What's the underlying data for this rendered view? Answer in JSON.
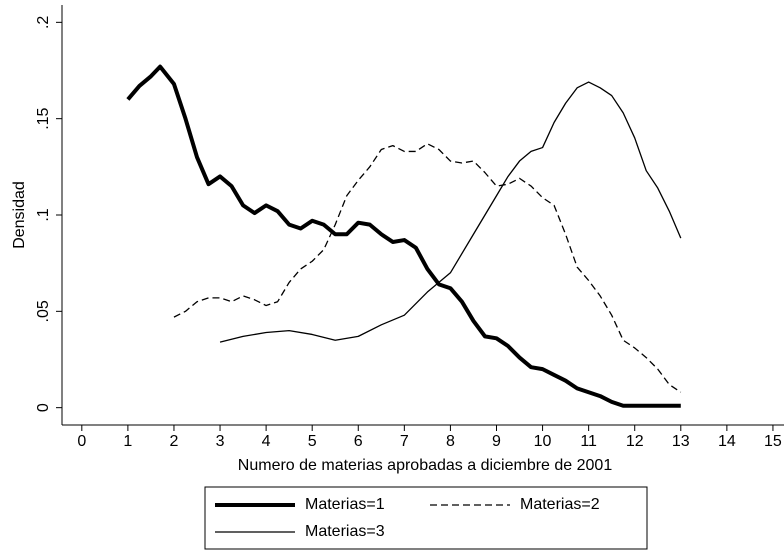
{
  "chart_data": {
    "type": "line",
    "x_label": "Numero de materias aprobadas a diciembre de 2001",
    "y_label": "Densidad",
    "xlim": [
      -0.43,
      15.24
    ],
    "ylim": [
      -0.009,
      0.209
    ],
    "xticks": [
      0,
      1,
      2,
      3,
      4,
      5,
      6,
      7,
      8,
      9,
      10,
      11,
      12,
      13,
      14,
      15
    ],
    "yticks": [
      0,
      {
        "value": 0.05,
        "label": ".05"
      },
      {
        "value": 0.1,
        "label": ".1"
      },
      {
        "value": 0.15,
        "label": ".15"
      },
      {
        "value": 0.2,
        "label": ".2"
      }
    ],
    "legend": "bottom",
    "series": [
      {
        "name": "Materias=1",
        "color": "#000000",
        "style": "thick",
        "x": [
          1,
          1.25,
          1.5,
          1.7,
          2,
          2.25,
          2.5,
          2.75,
          3,
          3.25,
          3.5,
          3.75,
          4,
          4.25,
          4.5,
          4.75,
          5,
          5.25,
          5.5,
          5.75,
          6,
          6.25,
          6.5,
          6.75,
          7,
          7.25,
          7.5,
          7.75,
          8,
          8.25,
          8.5,
          8.75,
          9,
          9.25,
          9.5,
          9.75,
          10,
          10.25,
          10.5,
          10.75,
          11,
          11.25,
          11.5,
          11.75,
          12,
          12.5,
          13
        ],
        "values": [
          0.16,
          0.167,
          0.172,
          0.177,
          0.168,
          0.15,
          0.13,
          0.116,
          0.12,
          0.115,
          0.105,
          0.101,
          0.105,
          0.102,
          0.095,
          0.093,
          0.097,
          0.095,
          0.09,
          0.09,
          0.096,
          0.095,
          0.09,
          0.086,
          0.087,
          0.083,
          0.072,
          0.064,
          0.062,
          0.055,
          0.045,
          0.037,
          0.036,
          0.032,
          0.026,
          0.021,
          0.02,
          0.017,
          0.014,
          0.01,
          0.008,
          0.006,
          0.003,
          0.001,
          0.001,
          0.001,
          0.001
        ]
      },
      {
        "name": "Materias=2",
        "color": "#000000",
        "style": "dashed",
        "x": [
          2,
          2.25,
          2.5,
          2.75,
          3,
          3.25,
          3.5,
          3.75,
          4,
          4.25,
          4.5,
          4.75,
          5,
          5.25,
          5.5,
          5.75,
          6,
          6.25,
          6.5,
          6.75,
          7,
          7.25,
          7.5,
          7.75,
          8,
          8.25,
          8.5,
          8.75,
          9,
          9.25,
          9.5,
          9.75,
          10,
          10.25,
          10.5,
          10.75,
          11,
          11.25,
          11.5,
          11.75,
          12,
          12.25,
          12.5,
          12.75,
          13
        ],
        "values": [
          0.047,
          0.05,
          0.055,
          0.057,
          0.057,
          0.055,
          0.058,
          0.056,
          0.053,
          0.055,
          0.065,
          0.072,
          0.076,
          0.082,
          0.095,
          0.11,
          0.118,
          0.125,
          0.134,
          0.136,
          0.133,
          0.133,
          0.137,
          0.134,
          0.128,
          0.127,
          0.128,
          0.122,
          0.115,
          0.116,
          0.119,
          0.115,
          0.109,
          0.105,
          0.09,
          0.073,
          0.066,
          0.058,
          0.048,
          0.035,
          0.031,
          0.026,
          0.02,
          0.012,
          0.008
        ]
      },
      {
        "name": "Materias=3",
        "color": "#000000",
        "style": "solid",
        "x": [
          3,
          3.5,
          4,
          4.5,
          5,
          5.5,
          6,
          6.5,
          7,
          7.5,
          8,
          8.5,
          9,
          9.25,
          9.5,
          9.75,
          10,
          10.25,
          10.5,
          10.75,
          11,
          11.25,
          11.5,
          11.75,
          12,
          12.25,
          12.5,
          12.75,
          13
        ],
        "values": [
          0.034,
          0.037,
          0.039,
          0.04,
          0.038,
          0.035,
          0.037,
          0.043,
          0.048,
          0.06,
          0.07,
          0.09,
          0.11,
          0.12,
          0.128,
          0.133,
          0.135,
          0.148,
          0.158,
          0.166,
          0.169,
          0.166,
          0.162,
          0.153,
          0.14,
          0.123,
          0.114,
          0.102,
          0.088
        ]
      }
    ]
  }
}
